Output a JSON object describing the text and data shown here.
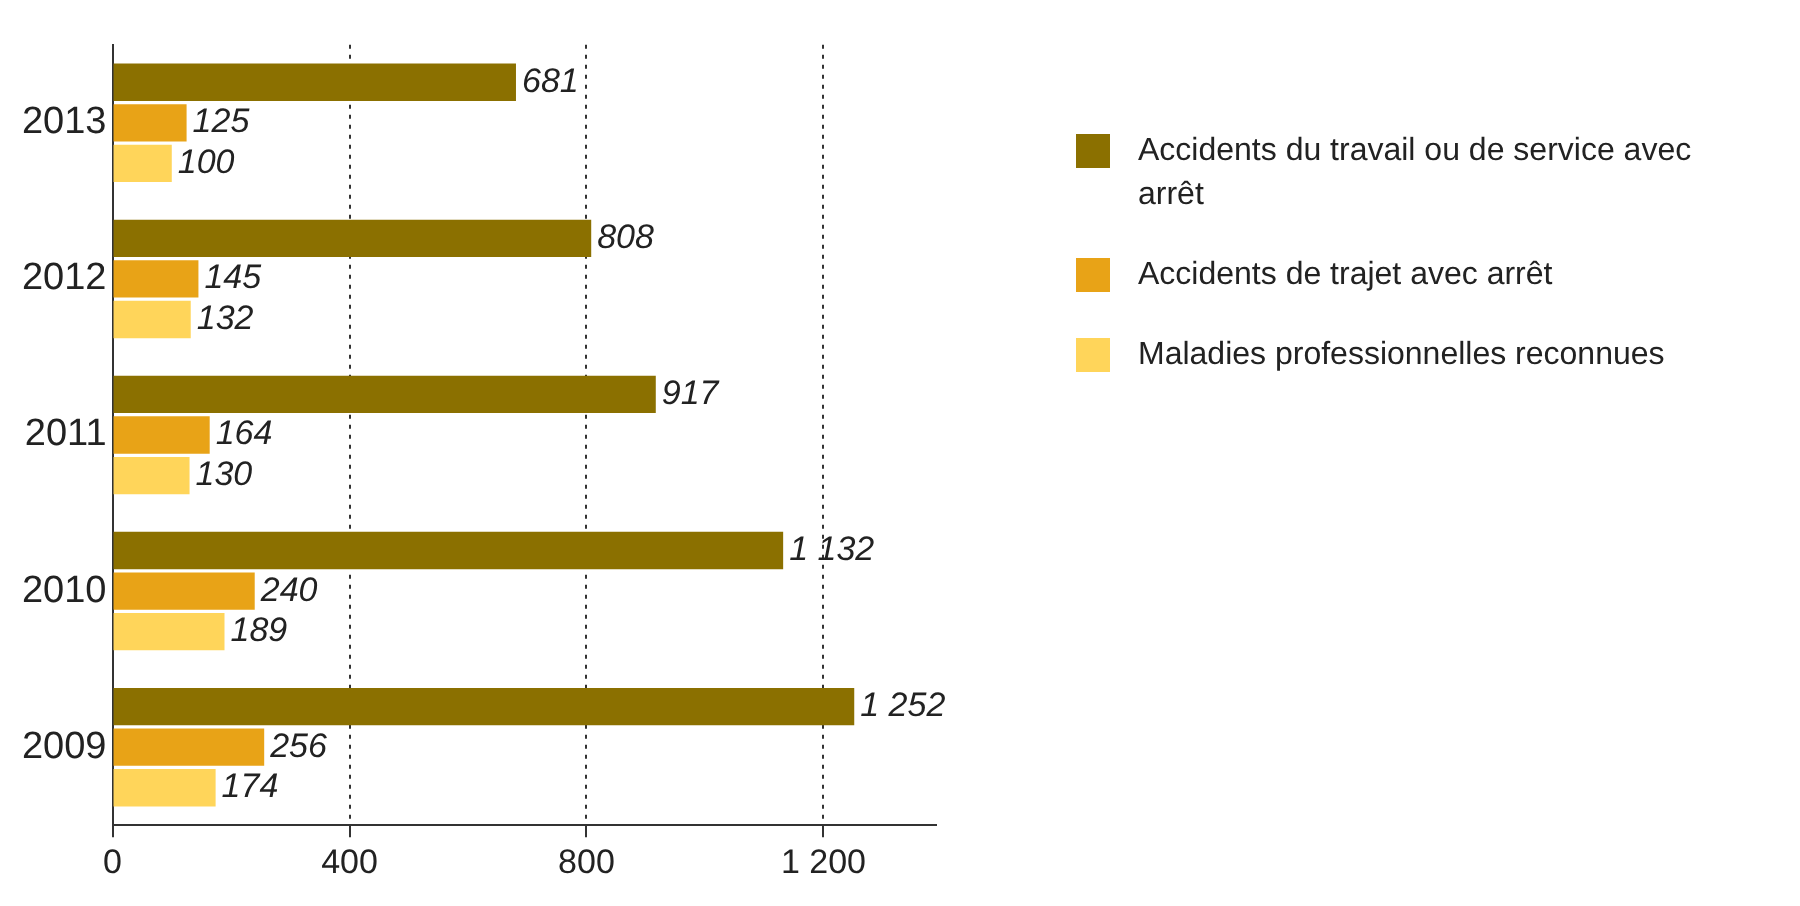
{
  "chart_data": {
    "type": "bar",
    "orientation": "horizontal",
    "categories": [
      "2013",
      "2012",
      "2011",
      "2010",
      "2009"
    ],
    "series": [
      {
        "name": "Accidents du travail ou de service avec arrêt",
        "color": "#8b7000",
        "values": [
          681,
          808,
          917,
          1132,
          1252
        ],
        "value_labels": [
          "681",
          "808",
          "917",
          "1 132",
          "1 252"
        ]
      },
      {
        "name": "Accidents de trajet avec arrêt",
        "color": "#e8a317",
        "values": [
          125,
          145,
          164,
          240,
          256
        ],
        "value_labels": [
          "125",
          "145",
          "164",
          "240",
          "256"
        ]
      },
      {
        "name": "Maladies professionnelles reconnues",
        "color": "#ffd55a",
        "values": [
          100,
          132,
          130,
          189,
          174
        ],
        "value_labels": [
          "100",
          "132",
          "130",
          "189",
          "174"
        ]
      }
    ],
    "xlim": [
      0,
      1390
    ],
    "xticks": [
      0,
      400,
      800,
      {
        "value": 1200,
        "label": "1 200"
      }
    ],
    "grid": "x",
    "legend": "right"
  }
}
